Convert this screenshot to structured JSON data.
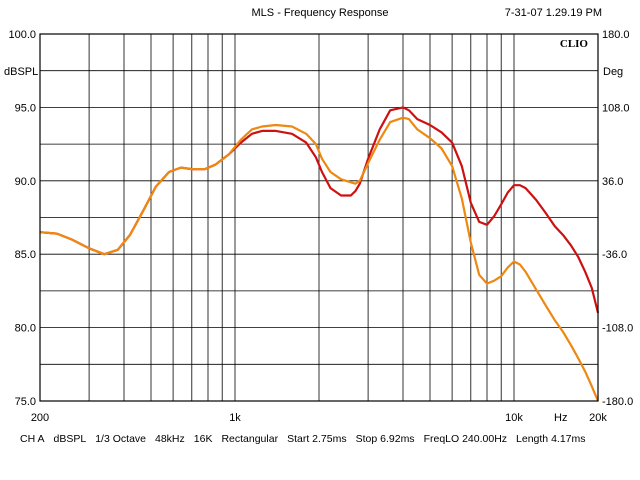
{
  "header": {
    "title": "MLS - Frequency Response",
    "date": "7-31-07 1.29.19 PM"
  },
  "brand": "CLIO",
  "footer": [
    "CH A",
    "dBSPL",
    "1/3 Octave",
    "48kHz",
    "16K",
    "Rectangular",
    "Start 2.75ms",
    "Stop 6.92ms",
    "FreqLO 240.00Hz",
    "Length 4.17ms"
  ],
  "chart_data": {
    "type": "line",
    "title": "MLS - Frequency Response",
    "xlabel": "Hz",
    "ylabel": "dBSPL",
    "ylabel_right": "Deg",
    "x_scale": "log",
    "xlim": [
      200,
      20000
    ],
    "ylim": [
      75,
      100
    ],
    "ylim_right": [
      -180,
      180
    ],
    "grid": true,
    "x_tick_labels": [
      {
        "value": 200,
        "label": "200"
      },
      {
        "value": 1000,
        "label": "1k"
      },
      {
        "value": 10000,
        "label": "10k"
      },
      {
        "value": 20000,
        "label": "20k"
      }
    ],
    "y_tick_labels": [
      "100.0",
      "95.0",
      "90.0",
      "85.0",
      "80.0",
      "75.0"
    ],
    "y_tick_labels_right": [
      "180.0",
      "108.0",
      "36.0",
      "-36.0",
      "-108.0",
      "-180.0"
    ],
    "series": [
      {
        "color": "#cc1111",
        "points": [
          [
            200,
            86.5
          ],
          [
            230,
            86.4
          ],
          [
            260,
            86.0
          ],
          [
            300,
            85.4
          ],
          [
            340,
            85.0
          ],
          [
            380,
            85.3
          ],
          [
            420,
            86.3
          ],
          [
            470,
            88.0
          ],
          [
            520,
            89.6
          ],
          [
            580,
            90.6
          ],
          [
            640,
            90.9
          ],
          [
            700,
            90.8
          ],
          [
            780,
            90.8
          ],
          [
            850,
            91.1
          ],
          [
            950,
            91.8
          ],
          [
            1050,
            92.6
          ],
          [
            1150,
            93.2
          ],
          [
            1250,
            93.4
          ],
          [
            1400,
            93.4
          ],
          [
            1600,
            93.2
          ],
          [
            1800,
            92.6
          ],
          [
            1950,
            91.6
          ],
          [
            2050,
            90.6
          ],
          [
            2200,
            89.5
          ],
          [
            2400,
            89.0
          ],
          [
            2600,
            89.0
          ],
          [
            2700,
            89.3
          ],
          [
            2800,
            89.8
          ],
          [
            3000,
            91.5
          ],
          [
            3300,
            93.5
          ],
          [
            3600,
            94.8
          ],
          [
            4000,
            95.0
          ],
          [
            4200,
            94.8
          ],
          [
            4500,
            94.2
          ],
          [
            5000,
            93.8
          ],
          [
            5500,
            93.3
          ],
          [
            6000,
            92.6
          ],
          [
            6500,
            91.0
          ],
          [
            7000,
            88.5
          ],
          [
            7500,
            87.2
          ],
          [
            8000,
            87.0
          ],
          [
            8500,
            87.6
          ],
          [
            9000,
            88.4
          ],
          [
            9500,
            89.2
          ],
          [
            10000,
            89.7
          ],
          [
            10500,
            89.7
          ],
          [
            11000,
            89.5
          ],
          [
            12000,
            88.7
          ],
          [
            13000,
            87.8
          ],
          [
            14000,
            86.9
          ],
          [
            15000,
            86.3
          ],
          [
            16000,
            85.6
          ],
          [
            17000,
            84.8
          ],
          [
            18000,
            83.8
          ],
          [
            19000,
            82.7
          ],
          [
            20000,
            81.0
          ]
        ]
      },
      {
        "color": "#ee8811",
        "points": [
          [
            200,
            86.5
          ],
          [
            230,
            86.4
          ],
          [
            260,
            86.0
          ],
          [
            300,
            85.4
          ],
          [
            340,
            85.0
          ],
          [
            380,
            85.3
          ],
          [
            420,
            86.3
          ],
          [
            470,
            88.0
          ],
          [
            520,
            89.6
          ],
          [
            580,
            90.6
          ],
          [
            640,
            90.9
          ],
          [
            700,
            90.8
          ],
          [
            780,
            90.8
          ],
          [
            850,
            91.1
          ],
          [
            950,
            91.8
          ],
          [
            1050,
            92.8
          ],
          [
            1150,
            93.5
          ],
          [
            1250,
            93.7
          ],
          [
            1400,
            93.8
          ],
          [
            1600,
            93.7
          ],
          [
            1800,
            93.2
          ],
          [
            1950,
            92.5
          ],
          [
            2050,
            91.5
          ],
          [
            2200,
            90.6
          ],
          [
            2400,
            90.1
          ],
          [
            2600,
            89.9
          ],
          [
            2700,
            89.8
          ],
          [
            2800,
            90.0
          ],
          [
            3000,
            91.2
          ],
          [
            3300,
            92.8
          ],
          [
            3600,
            94.0
          ],
          [
            4000,
            94.3
          ],
          [
            4200,
            94.2
          ],
          [
            4500,
            93.5
          ],
          [
            5000,
            92.9
          ],
          [
            5500,
            92.2
          ],
          [
            6000,
            91.0
          ],
          [
            6500,
            88.8
          ],
          [
            7000,
            85.8
          ],
          [
            7500,
            83.6
          ],
          [
            8000,
            83.0
          ],
          [
            8500,
            83.2
          ],
          [
            9000,
            83.5
          ],
          [
            9500,
            84.1
          ],
          [
            10000,
            84.5
          ],
          [
            10500,
            84.3
          ],
          [
            11000,
            83.8
          ],
          [
            12000,
            82.6
          ],
          [
            13000,
            81.5
          ],
          [
            14000,
            80.5
          ],
          [
            15000,
            79.7
          ],
          [
            16000,
            78.8
          ],
          [
            17000,
            77.9
          ],
          [
            18000,
            77.0
          ],
          [
            19000,
            76.0
          ],
          [
            20000,
            75.0
          ]
        ]
      }
    ]
  }
}
